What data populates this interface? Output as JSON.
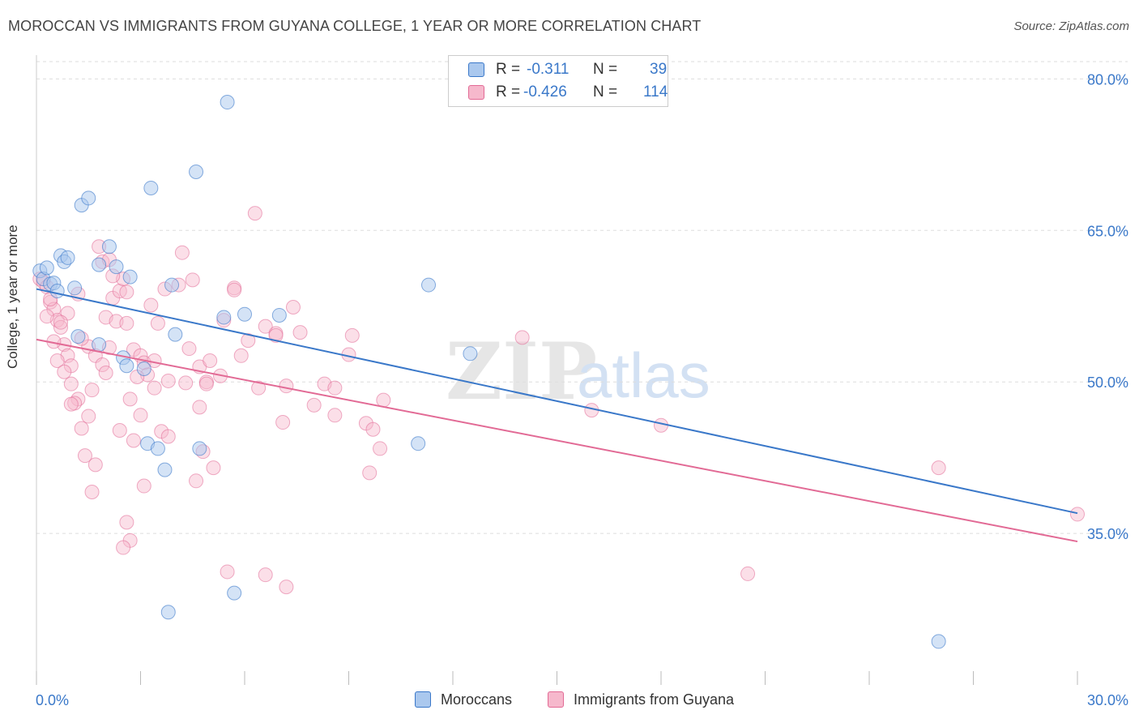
{
  "header": {
    "title": "MOROCCAN VS IMMIGRANTS FROM GUYANA COLLEGE, 1 YEAR OR MORE CORRELATION CHART",
    "source": "Source: ZipAtlas.com"
  },
  "legend": {
    "rows": [
      {
        "r_label": "R = ",
        "r_value": "-0.311",
        "n_label": "N = ",
        "n_value": "39"
      },
      {
        "r_label": "R = ",
        "r_value": "-0.426",
        "n_label": "N = ",
        "n_value": "114"
      }
    ]
  },
  "bottom_legend": {
    "items": [
      {
        "label": "Moroccans"
      },
      {
        "label": "Immigrants from Guyana"
      }
    ]
  },
  "watermark": {
    "zip": "ZIP",
    "atlas": "atlas"
  },
  "colors": {
    "blue": "#3a78c9",
    "blue_fill": "#aac8ee",
    "pink": "#e26a95",
    "pink_fill": "#f6b8cc",
    "grid": "#dddddd",
    "tick_label": "#3a78c9"
  },
  "chart_data": {
    "type": "scatter",
    "title": "MOROCCAN VS IMMIGRANTS FROM GUYANA COLLEGE, 1 YEAR OR MORE CORRELATION CHART",
    "xlabel": "",
    "ylabel": "College, 1 year or more",
    "xlim": [
      0,
      30
    ],
    "ylim": [
      20,
      83
    ],
    "x_tick_labels": [
      "0.0%",
      "30.0%"
    ],
    "y_ticks": [
      35,
      50,
      65,
      80
    ],
    "y_tick_labels": [
      "35.0%",
      "50.0%",
      "65.0%",
      "80.0%"
    ],
    "grid": true,
    "series": [
      {
        "name": "Moroccans",
        "color": "#3a78c9",
        "r": -0.311,
        "n": 39,
        "trend": {
          "x0": 0.0,
          "y0": 59.2,
          "x1": 30.0,
          "y1": 37.0
        },
        "points": [
          [
            0.1,
            61.0
          ],
          [
            0.2,
            60.2
          ],
          [
            0.3,
            61.3
          ],
          [
            0.4,
            59.7
          ],
          [
            0.5,
            59.8
          ],
          [
            0.6,
            59.0
          ],
          [
            0.7,
            62.5
          ],
          [
            0.8,
            61.9
          ],
          [
            0.9,
            62.3
          ],
          [
            1.1,
            59.3
          ],
          [
            1.3,
            67.5
          ],
          [
            1.5,
            68.2
          ],
          [
            1.8,
            61.6
          ],
          [
            2.1,
            63.4
          ],
          [
            2.3,
            61.4
          ],
          [
            2.7,
            60.4
          ],
          [
            3.3,
            69.2
          ],
          [
            3.9,
            59.6
          ],
          [
            4.6,
            70.8
          ],
          [
            5.5,
            77.7
          ],
          [
            5.4,
            56.4
          ],
          [
            6.0,
            56.7
          ],
          [
            2.5,
            52.4
          ],
          [
            1.8,
            53.7
          ],
          [
            2.6,
            51.6
          ],
          [
            3.1,
            51.3
          ],
          [
            1.2,
            54.5
          ],
          [
            4.0,
            54.7
          ],
          [
            3.2,
            43.9
          ],
          [
            3.5,
            43.4
          ],
          [
            4.7,
            43.4
          ],
          [
            3.7,
            41.3
          ],
          [
            5.7,
            29.1
          ],
          [
            3.8,
            27.2
          ],
          [
            7.0,
            56.6
          ],
          [
            11.3,
            59.6
          ],
          [
            12.5,
            52.8
          ],
          [
            11.0,
            43.9
          ],
          [
            26.0,
            24.3
          ]
        ]
      },
      {
        "name": "Immigrants from Guyana",
        "color": "#e26a95",
        "r": -0.426,
        "n": 114,
        "trend": {
          "x0": 0.0,
          "y0": 54.2,
          "x1": 30.0,
          "y1": 34.2
        },
        "points": [
          [
            0.1,
            60.2
          ],
          [
            0.2,
            59.9
          ],
          [
            0.3,
            59.4
          ],
          [
            0.4,
            57.9
          ],
          [
            0.5,
            57.2
          ],
          [
            0.6,
            56.1
          ],
          [
            0.7,
            55.4
          ],
          [
            0.8,
            53.7
          ],
          [
            0.9,
            52.6
          ],
          [
            1.0,
            51.6
          ],
          [
            0.3,
            56.5
          ],
          [
            0.5,
            54.0
          ],
          [
            0.6,
            52.1
          ],
          [
            0.8,
            51.0
          ],
          [
            1.0,
            49.8
          ],
          [
            1.2,
            48.3
          ],
          [
            1.1,
            47.9
          ],
          [
            1.3,
            45.4
          ],
          [
            1.4,
            42.7
          ],
          [
            1.6,
            39.1
          ],
          [
            1.7,
            41.8
          ],
          [
            1.5,
            53.5
          ],
          [
            1.7,
            52.6
          ],
          [
            1.9,
            51.7
          ],
          [
            2.0,
            56.4
          ],
          [
            2.2,
            58.3
          ],
          [
            2.4,
            59.0
          ],
          [
            2.5,
            60.2
          ],
          [
            2.6,
            58.9
          ],
          [
            1.9,
            61.9
          ],
          [
            1.8,
            63.4
          ],
          [
            2.1,
            62.1
          ],
          [
            2.3,
            56.0
          ],
          [
            2.6,
            55.8
          ],
          [
            2.8,
            53.2
          ],
          [
            3.0,
            52.6
          ],
          [
            3.1,
            51.9
          ],
          [
            3.2,
            50.7
          ],
          [
            3.4,
            49.4
          ],
          [
            2.9,
            50.5
          ],
          [
            2.7,
            48.3
          ],
          [
            3.6,
            45.1
          ],
          [
            3.8,
            44.6
          ],
          [
            2.8,
            44.2
          ],
          [
            2.6,
            36.1
          ],
          [
            2.7,
            34.3
          ],
          [
            2.5,
            33.6
          ],
          [
            3.1,
            39.7
          ],
          [
            3.3,
            57.6
          ],
          [
            3.7,
            59.2
          ],
          [
            4.1,
            59.6
          ],
          [
            4.2,
            62.8
          ],
          [
            4.5,
            60.1
          ],
          [
            4.7,
            51.5
          ],
          [
            4.9,
            50.0
          ],
          [
            4.7,
            47.5
          ],
          [
            4.8,
            43.1
          ],
          [
            4.6,
            40.2
          ],
          [
            5.1,
            41.5
          ],
          [
            5.4,
            56.1
          ],
          [
            5.7,
            59.3
          ],
          [
            5.7,
            59.1
          ],
          [
            6.1,
            54.1
          ],
          [
            5.9,
            52.6
          ],
          [
            6.3,
            66.7
          ],
          [
            6.6,
            55.5
          ],
          [
            6.9,
            54.8
          ],
          [
            7.2,
            49.6
          ],
          [
            7.1,
            46.0
          ],
          [
            6.4,
            49.4
          ],
          [
            7.4,
            57.4
          ],
          [
            7.6,
            54.9
          ],
          [
            8.0,
            47.7
          ],
          [
            8.3,
            49.8
          ],
          [
            8.6,
            46.7
          ],
          [
            9.0,
            52.7
          ],
          [
            9.1,
            54.6
          ],
          [
            9.5,
            45.9
          ],
          [
            9.7,
            45.3
          ],
          [
            9.6,
            41.0
          ],
          [
            9.9,
            43.4
          ],
          [
            10.0,
            48.2
          ],
          [
            14.0,
            54.4
          ],
          [
            16.0,
            47.2
          ],
          [
            18.0,
            45.7
          ],
          [
            20.5,
            31.0
          ],
          [
            26.0,
            41.5
          ],
          [
            30.0,
            36.9
          ],
          [
            5.5,
            31.2
          ],
          [
            6.6,
            30.9
          ],
          [
            7.2,
            29.7
          ],
          [
            5.0,
            52.1
          ],
          [
            4.4,
            53.3
          ],
          [
            3.5,
            55.8
          ],
          [
            1.6,
            49.2
          ],
          [
            0.9,
            56.8
          ],
          [
            0.4,
            58.2
          ],
          [
            1.2,
            58.7
          ],
          [
            2.2,
            60.5
          ],
          [
            3.8,
            50.1
          ],
          [
            4.3,
            49.9
          ],
          [
            5.3,
            50.6
          ],
          [
            2.0,
            50.9
          ],
          [
            1.5,
            46.6
          ],
          [
            3.0,
            46.7
          ],
          [
            6.9,
            54.6
          ],
          [
            8.6,
            49.4
          ],
          [
            1.0,
            47.8
          ],
          [
            0.7,
            55.9
          ],
          [
            1.3,
            54.3
          ],
          [
            2.4,
            45.2
          ],
          [
            2.1,
            53.4
          ],
          [
            3.4,
            52.1
          ],
          [
            4.9,
            49.8
          ]
        ]
      }
    ]
  }
}
